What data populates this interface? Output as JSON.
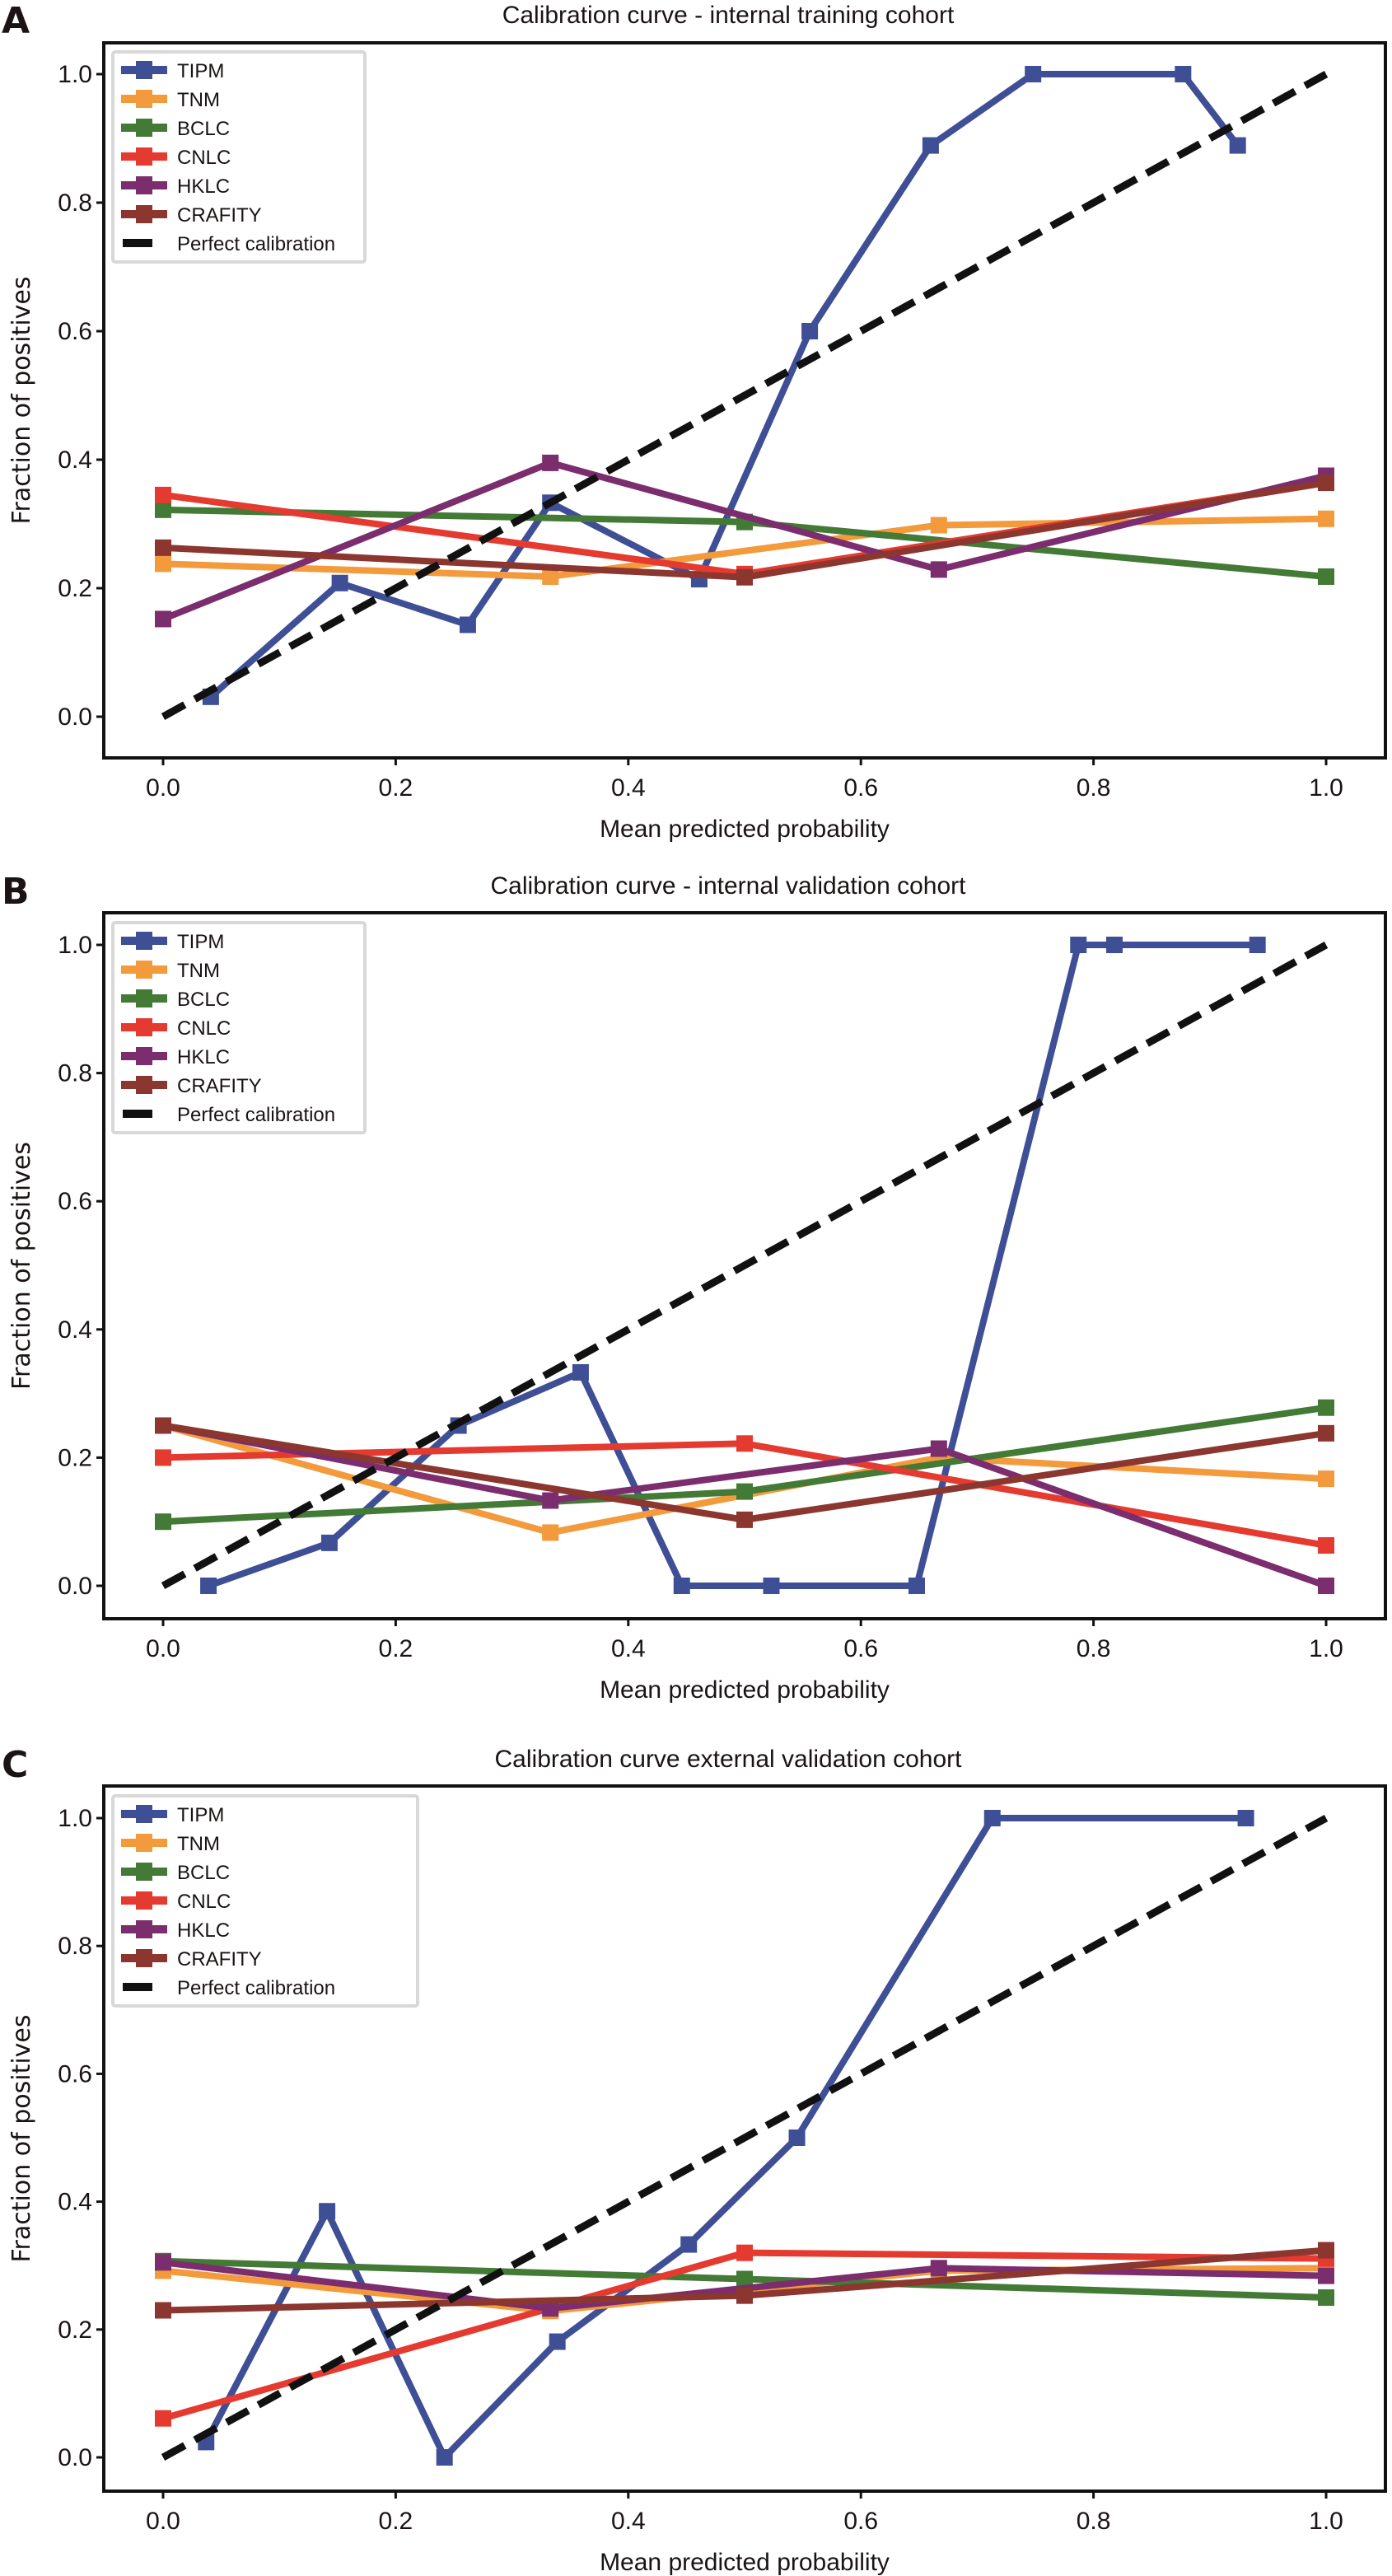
{
  "figure": {
    "background": "#ffffff",
    "series_colors": {
      "TIPM": "#3f4f96",
      "TNM": "#f39a3c",
      "BCLC": "#437a35",
      "CNLC": "#e53a2f",
      "HKLC": "#7b2d6e",
      "CRAFITY": "#8c3630",
      "Perfect calibration": "#111111"
    }
  },
  "chart_data": [
    {
      "panel": "A",
      "type": "line",
      "title": "Calibration curve - internal training cohort",
      "xlabel": "Mean predicted probability",
      "ylabel": "Fraction of positives",
      "xlim": [
        -0.05,
        1.05
      ],
      "ylim": [
        -0.05,
        1.05
      ],
      "xticks": [
        "0.0",
        "0.2",
        "0.4",
        "0.6",
        "0.8",
        "1.0"
      ],
      "yticks": [
        "0.0",
        "0.2",
        "0.4",
        "0.6",
        "0.8",
        "1.0"
      ],
      "grid": false,
      "legend_position": "top-left",
      "legend": [
        "TIPM",
        "TNM",
        "BCLC",
        "CNLC",
        "HKLC",
        "CRAFITY",
        "Perfect calibration"
      ],
      "series": [
        {
          "name": "TIPM",
          "x": [
            0.041,
            0.152,
            0.262,
            0.333,
            0.461,
            0.556,
            0.66,
            0.748,
            0.877,
            0.924
          ],
          "y": [
            0.031,
            0.208,
            0.143,
            0.333,
            0.214,
            0.6,
            0.889,
            1.0,
            1.0,
            0.889
          ]
        },
        {
          "name": "TNM",
          "x": [
            0.0,
            0.333,
            0.667,
            1.0
          ],
          "y": [
            0.238,
            0.218,
            0.298,
            0.308
          ]
        },
        {
          "name": "BCLC",
          "x": [
            0.0,
            0.5,
            1.0
          ],
          "y": [
            0.322,
            0.303,
            0.218
          ]
        },
        {
          "name": "CNLC",
          "x": [
            0.0,
            0.5,
            1.0
          ],
          "y": [
            0.345,
            0.222,
            0.365
          ]
        },
        {
          "name": "HKLC",
          "x": [
            0.0,
            0.333,
            0.667,
            1.0
          ],
          "y": [
            0.152,
            0.395,
            0.229,
            0.375
          ]
        },
        {
          "name": "CRAFITY",
          "x": [
            0.0,
            0.5,
            1.0
          ],
          "y": [
            0.263,
            0.217,
            0.364
          ]
        },
        {
          "name": "Perfect calibration",
          "x": [
            0.0,
            1.0
          ],
          "y": [
            0.0,
            1.0
          ],
          "style": "dashed"
        }
      ]
    },
    {
      "panel": "B",
      "type": "line",
      "title": "Calibration curve - internal validation cohort",
      "xlabel": "Mean predicted probability",
      "ylabel": "Fraction of positives",
      "xlim": [
        -0.05,
        1.05
      ],
      "ylim": [
        -0.05,
        1.05
      ],
      "xticks": [
        "0.0",
        "0.2",
        "0.4",
        "0.6",
        "0.8",
        "1.0"
      ],
      "yticks": [
        "0.0",
        "0.2",
        "0.4",
        "0.6",
        "0.8",
        "1.0"
      ],
      "grid": false,
      "legend_position": "top-left",
      "legend": [
        "TIPM",
        "TNM",
        "BCLC",
        "CNLC",
        "HKLC",
        "CRAFITY",
        "Perfect calibration"
      ],
      "series": [
        {
          "name": "TIPM",
          "x": [
            0.039,
            0.143,
            0.254,
            0.359,
            0.446,
            0.523,
            0.648,
            0.787,
            0.818,
            0.941
          ],
          "y": [
            0.0,
            0.067,
            0.25,
            0.333,
            0.0,
            0.0,
            0.0,
            1.0,
            1.0,
            1.0
          ]
        },
        {
          "name": "TNM",
          "x": [
            0.0,
            0.333,
            0.667,
            1.0
          ],
          "y": [
            0.25,
            0.083,
            0.2,
            0.167
          ]
        },
        {
          "name": "BCLC",
          "x": [
            0.0,
            0.5,
            1.0
          ],
          "y": [
            0.1,
            0.147,
            0.278
          ]
        },
        {
          "name": "CNLC",
          "x": [
            0.0,
            0.5,
            1.0
          ],
          "y": [
            0.2,
            0.222,
            0.063
          ]
        },
        {
          "name": "HKLC",
          "x": [
            0.0,
            0.333,
            0.667,
            1.0
          ],
          "y": [
            0.25,
            0.133,
            0.214,
            0.0
          ]
        },
        {
          "name": "CRAFITY",
          "x": [
            0.0,
            0.5,
            1.0
          ],
          "y": [
            0.25,
            0.103,
            0.238
          ]
        },
        {
          "name": "Perfect calibration",
          "x": [
            0.0,
            1.0
          ],
          "y": [
            0.0,
            1.0
          ],
          "style": "dashed"
        }
      ]
    },
    {
      "panel": "C",
      "type": "line",
      "title": "Calibration curve external validation cohort",
      "xlabel": "Mean predicted probability",
      "ylabel": "Fraction of positives",
      "xlim": [
        -0.05,
        1.05
      ],
      "ylim": [
        -0.05,
        1.05
      ],
      "xticks": [
        "0.0",
        "0.2",
        "0.4",
        "0.6",
        "0.8",
        "1.0"
      ],
      "yticks": [
        "0.0",
        "0.2",
        "0.4",
        "0.6",
        "0.8",
        "1.0"
      ],
      "grid": false,
      "legend_position": "top-left",
      "legend": [
        "TIPM",
        "TNM",
        "BCLC",
        "CNLC",
        "HKLC",
        "CRAFITY",
        "Perfect calibration"
      ],
      "series": [
        {
          "name": "TIPM",
          "x": [
            0.037,
            0.141,
            0.242,
            0.339,
            0.452,
            0.545,
            0.713,
            0.931
          ],
          "y": [
            0.024,
            0.385,
            0.0,
            0.181,
            0.333,
            0.5,
            1.0,
            1.0
          ]
        },
        {
          "name": "TNM",
          "x": [
            0.0,
            0.333,
            0.667,
            1.0
          ],
          "y": [
            0.292,
            0.229,
            0.292,
            0.296
          ]
        },
        {
          "name": "BCLC",
          "x": [
            0.0,
            0.5,
            1.0
          ],
          "y": [
            0.307,
            0.279,
            0.25
          ]
        },
        {
          "name": "CNLC",
          "x": [
            0.0,
            0.5,
            1.0
          ],
          "y": [
            0.061,
            0.32,
            0.311
          ]
        },
        {
          "name": "HKLC",
          "x": [
            0.0,
            0.333,
            0.667,
            1.0
          ],
          "y": [
            0.305,
            0.233,
            0.296,
            0.284
          ]
        },
        {
          "name": "CRAFITY",
          "x": [
            0.0,
            0.5,
            1.0
          ],
          "y": [
            0.23,
            0.253,
            0.324
          ]
        },
        {
          "name": "Perfect calibration",
          "x": [
            0.0,
            1.0
          ],
          "y": [
            0.0,
            1.0
          ],
          "style": "dashed"
        }
      ]
    }
  ]
}
